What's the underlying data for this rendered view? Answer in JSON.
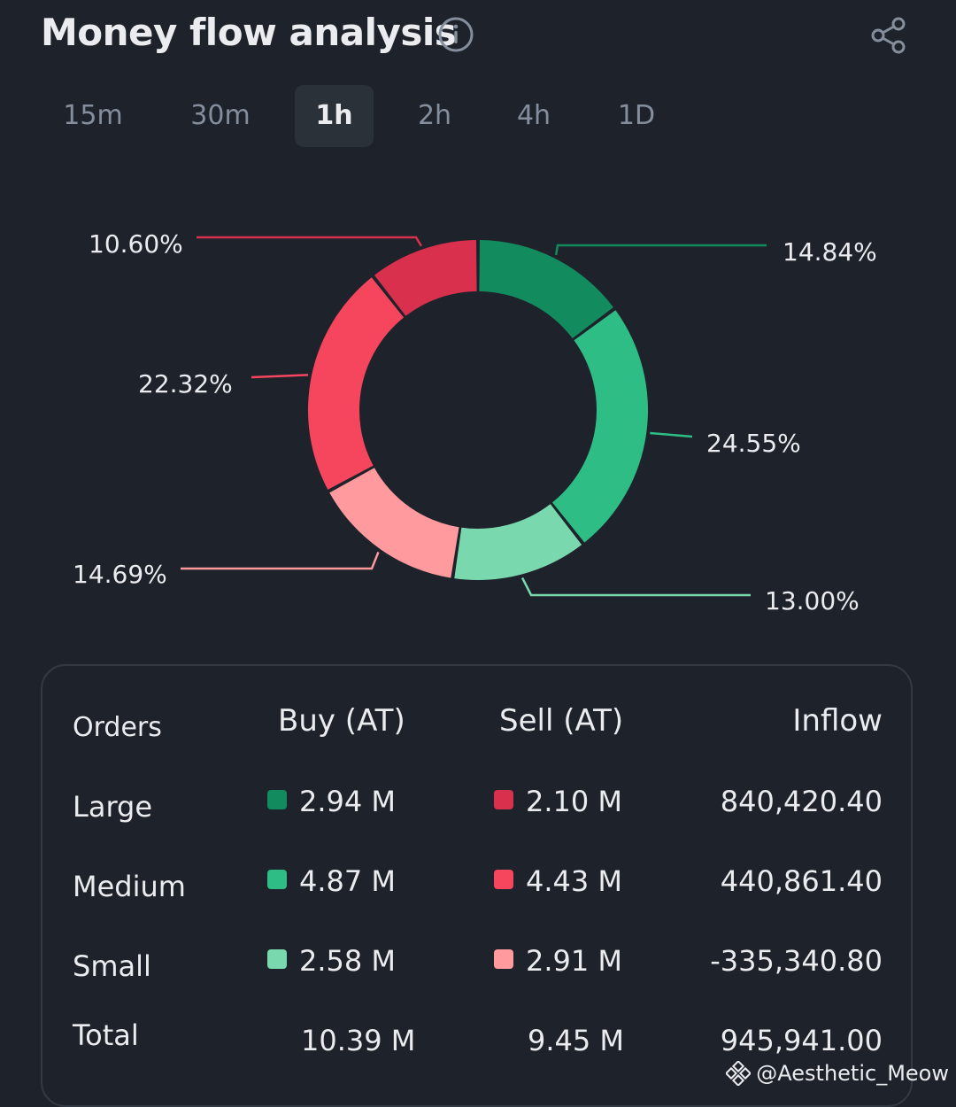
{
  "header": {
    "title": "Money flow analysis",
    "info_icon": "info-icon",
    "share_icon": "share-icon"
  },
  "tabs": [
    {
      "label": "15m",
      "active": false
    },
    {
      "label": "30m",
      "active": false
    },
    {
      "label": "1h",
      "active": true
    },
    {
      "label": "2h",
      "active": false
    },
    {
      "label": "4h",
      "active": false
    },
    {
      "label": "1D",
      "active": false
    }
  ],
  "chart_data": {
    "type": "pie",
    "donut": true,
    "slices": [
      {
        "name": "Large Buy",
        "value": 14.84,
        "label": "14.84%",
        "color": "#128c5e"
      },
      {
        "name": "Medium Buy",
        "value": 24.55,
        "label": "24.55%",
        "color": "#2ebd85"
      },
      {
        "name": "Small Buy",
        "value": 13.0,
        "label": "13.00%",
        "color": "#7ad8ae"
      },
      {
        "name": "Small Sell",
        "value": 14.69,
        "label": "14.69%",
        "color": "#ff9a9e"
      },
      {
        "name": "Medium Sell",
        "value": 22.32,
        "label": "22.32%",
        "color": "#f6465d"
      },
      {
        "name": "Large Sell",
        "value": 10.6,
        "label": "10.60%",
        "color": "#d9304e"
      }
    ]
  },
  "table": {
    "headers": {
      "orders": "Orders",
      "buy": "Buy (AT)",
      "sell": "Sell (AT)",
      "inflow": "Inflow"
    },
    "rows": [
      {
        "label": "Large",
        "buy": "2.94 M",
        "buy_color": "#128c5e",
        "sell": "2.10 M",
        "sell_color": "#d9304e",
        "inflow": "840,420.40"
      },
      {
        "label": "Medium",
        "buy": "4.87 M",
        "buy_color": "#2ebd85",
        "sell": "4.43 M",
        "sell_color": "#f6465d",
        "inflow": "440,861.40"
      },
      {
        "label": "Small",
        "buy": "2.58 M",
        "buy_color": "#7ad8ae",
        "sell": "2.91 M",
        "sell_color": "#ff9a9e",
        "inflow": "-335,340.80"
      }
    ],
    "total": {
      "label": "Total",
      "buy": "10.39 M",
      "sell": "9.45 M",
      "inflow": "945,941.00"
    }
  },
  "watermark": {
    "text": "@Aesthetic_Meow",
    "icon": "binance-logo-icon"
  }
}
